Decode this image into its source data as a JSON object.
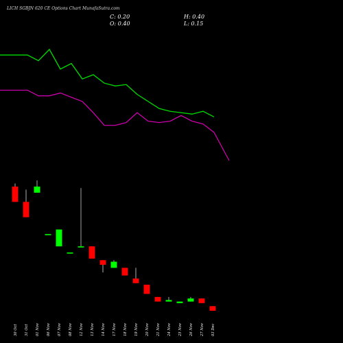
{
  "header": {
    "title": "LICH          SGBJN 620 CE Options Chart MunafaSutra.com",
    "open_label": "O: 0.40",
    "high_label": "H: 0.40",
    "low_label": "L: 0.15",
    "close_label": "C: 0.20"
  },
  "chart_data": {
    "type": "candlestick",
    "title": "LICH          SGBJN 620 CE Options Chart MunafaSutra.com",
    "categories": [
      "30 Oct",
      "31 Oct",
      "01 Nov",
      "06 Nov",
      "07 Nov",
      "08 Nov",
      "12 Nov",
      "13 Nov",
      "14 Nov",
      "17 Nov",
      "18 Nov",
      "19 Nov",
      "20 Nov",
      "21 Nov",
      "24 Nov",
      "25 Nov",
      "26 Nov",
      "27 Nov",
      "03 Dec"
    ],
    "candles": [
      {
        "open": 1.0,
        "high": 1.02,
        "low": 0.9,
        "close": 0.9
      },
      {
        "open": 0.9,
        "high": 0.98,
        "low": 0.8,
        "close": 0.8
      },
      {
        "open": 0.96,
        "high": 1.04,
        "low": 0.96,
        "close": 1.0
      },
      {
        "open": 0.69,
        "high": 0.69,
        "low": 0.69,
        "close": 0.69
      },
      {
        "open": 0.61,
        "high": 0.72,
        "low": 0.61,
        "close": 0.72
      },
      {
        "open": 0.57,
        "high": 0.57,
        "low": 0.57,
        "close": 0.57
      },
      {
        "open": 0.61,
        "high": 0.99,
        "low": 0.61,
        "close": 0.61
      },
      {
        "open": 0.61,
        "high": 0.61,
        "low": 0.53,
        "close": 0.53
      },
      {
        "open": 0.52,
        "high": 0.52,
        "low": 0.44,
        "close": 0.49
      },
      {
        "open": 0.47,
        "high": 0.52,
        "low": 0.47,
        "close": 0.51
      },
      {
        "open": 0.47,
        "high": 0.47,
        "low": 0.42,
        "close": 0.42
      },
      {
        "open": 0.4,
        "high": 0.47,
        "low": 0.37,
        "close": 0.37
      },
      {
        "open": 0.36,
        "high": 0.36,
        "low": 0.3,
        "close": 0.3
      },
      {
        "open": 0.28,
        "high": 0.28,
        "low": 0.25,
        "close": 0.25
      },
      {
        "open": 0.25,
        "high": 0.28,
        "low": 0.25,
        "close": 0.26
      },
      {
        "open": 0.24,
        "high": 0.25,
        "low": 0.24,
        "close": 0.25
      },
      {
        "open": 0.25,
        "high": 0.28,
        "low": 0.25,
        "close": 0.27
      },
      {
        "open": 0.27,
        "high": 0.27,
        "low": 0.24,
        "close": 0.24
      },
      {
        "open": 0.22,
        "high": 0.22,
        "low": 0.19,
        "close": 0.19
      }
    ],
    "ma_short": [
      1.15,
      1.15,
      1.11,
      1.19,
      1.05,
      1.09,
      0.98,
      1.01,
      0.95,
      0.93,
      0.94,
      0.87,
      0.82,
      0.77,
      0.75,
      0.74,
      0.73,
      0.75,
      0.71
    ],
    "ma_long": [
      0.9,
      0.9,
      0.86,
      0.86,
      0.88,
      0.85,
      0.82,
      0.74,
      0.65,
      0.65,
      0.67,
      0.74,
      0.68,
      0.67,
      0.68,
      0.72,
      0.68,
      0.66,
      0.6,
      0.4
    ],
    "ma_long_x_extra": true,
    "colors": {
      "up": "#00ff00",
      "down": "#ff0000",
      "ma_short": "#00dd00",
      "ma_long": "#cc00aa",
      "background": "#000000",
      "axis_text": "#ffffff"
    }
  }
}
